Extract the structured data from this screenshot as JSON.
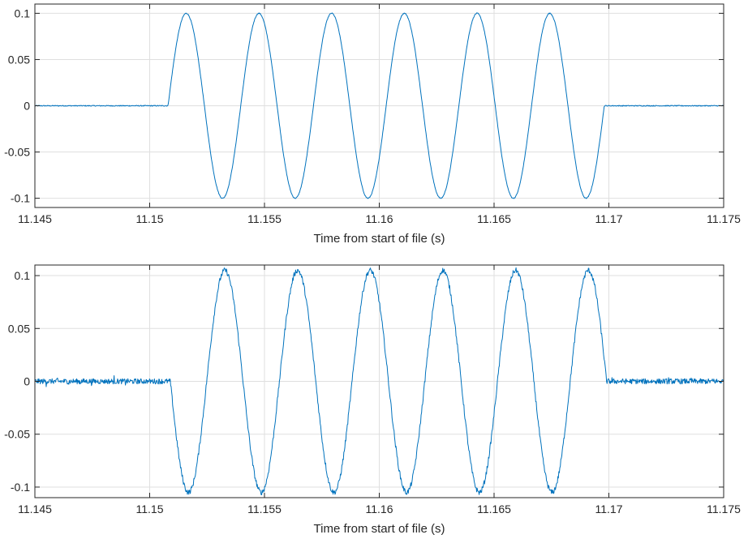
{
  "chart_data": [
    {
      "type": "line",
      "title": "",
      "xlabel": "Time from start of file (s)",
      "ylabel": "",
      "xlim": [
        11.145,
        11.175
      ],
      "ylim": [
        -0.11,
        0.11
      ],
      "grid": true,
      "legend": "none",
      "line_color": "#0072BD",
      "xticks": [
        {
          "value": 11.145,
          "label": "11.145"
        },
        {
          "value": 11.15,
          "label": "11.15"
        },
        {
          "value": 11.155,
          "label": "11.155"
        },
        {
          "value": 11.16,
          "label": "11.16"
        },
        {
          "value": 11.165,
          "label": "11.165"
        },
        {
          "value": 11.17,
          "label": "11.17"
        },
        {
          "value": 11.175,
          "label": "11.175"
        }
      ],
      "yticks": [
        {
          "value": 0.1,
          "label": "0.1"
        },
        {
          "value": 0.05,
          "label": "0.05"
        },
        {
          "value": 0,
          "label": "0"
        },
        {
          "value": -0.05,
          "label": "-0.05"
        },
        {
          "value": -0.1,
          "label": "-0.1"
        }
      ],
      "signal": {
        "start": 11.1508,
        "end": 11.1698,
        "cycles": 6,
        "amplitude": 0.1,
        "polarity": 1,
        "noise": 0.0005
      }
    },
    {
      "type": "line",
      "title": "",
      "xlabel": "Time from start of file (s)",
      "ylabel": "",
      "xlim": [
        11.145,
        11.175
      ],
      "ylim": [
        -0.11,
        0.11
      ],
      "grid": true,
      "legend": "none",
      "line_color": "#0072BD",
      "xticks": [
        {
          "value": 11.145,
          "label": "11.145"
        },
        {
          "value": 11.15,
          "label": "11.15"
        },
        {
          "value": 11.155,
          "label": "11.155"
        },
        {
          "value": 11.16,
          "label": "11.16"
        },
        {
          "value": 11.165,
          "label": "11.165"
        },
        {
          "value": 11.17,
          "label": "11.17"
        },
        {
          "value": 11.175,
          "label": "11.175"
        }
      ],
      "yticks": [
        {
          "value": 0.1,
          "label": "0.1"
        },
        {
          "value": 0.05,
          "label": "0.05"
        },
        {
          "value": 0,
          "label": "0"
        },
        {
          "value": -0.05,
          "label": "-0.05"
        },
        {
          "value": -0.1,
          "label": "-0.1"
        }
      ],
      "signal": {
        "start": 11.1509,
        "end": 11.1699,
        "cycles": 6,
        "amplitude": 0.105,
        "polarity": -1,
        "noise": 0.0025
      }
    }
  ]
}
